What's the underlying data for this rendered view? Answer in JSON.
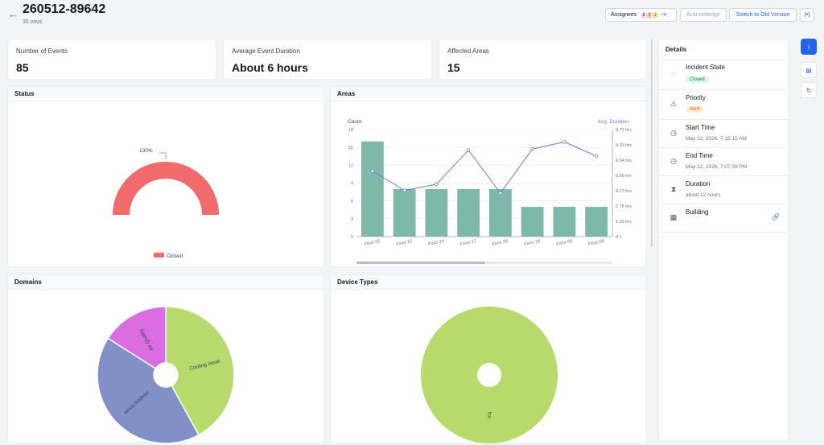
{
  "header": {
    "back_icon": "arrow-left-icon",
    "title": "260512-89642",
    "subtitle": "35 vavs",
    "assignees_label": "Assignees",
    "assignee_avatars": [
      "E",
      "C",
      "J"
    ],
    "assignee_more": "+4",
    "acknowledge_label": "Acknowledge",
    "switch_label": "Switch to Old Version",
    "radio_icon": "broadcast-icon"
  },
  "stats": [
    {
      "label": "Number of Events",
      "value": "85"
    },
    {
      "label": "Average Event Duration",
      "value": "About 6 hours"
    },
    {
      "label": "Affected Areas",
      "value": "15"
    }
  ],
  "panels": {
    "status": "Status",
    "areas": "Areas",
    "domains": "Domains",
    "device_types": "Device Types"
  },
  "status_chart": {
    "type": "pie",
    "slices": [
      {
        "label": "Closed",
        "value": 100,
        "color": "#f06b6b"
      }
    ],
    "percent_label": "100%",
    "legend": "Closed"
  },
  "chart_data": [
    {
      "type": "bar",
      "title": "Areas",
      "ylabel": "Count",
      "y2label": "Avg. Duration",
      "categories": [
        "Floor 02",
        "Floor 22",
        "Floor 24",
        "Floor 17",
        "Floor 05",
        "Floor 23",
        "Floor 09",
        "Floor 08"
      ],
      "series": [
        {
          "name": "Count",
          "values": [
            16,
            8,
            8,
            8,
            8,
            5,
            5,
            5
          ],
          "color": "#7fb8aa"
        },
        {
          "name": "Avg. Duration",
          "values": [
            5.95,
            4.2,
            4.75,
            7.85,
            3.95,
            7.95,
            8.6,
            7.3
          ],
          "color": "#6a7fd6"
        }
      ],
      "ylim": [
        0,
        18
      ],
      "yticks": [
        "0",
        "3",
        "6",
        "9",
        "12",
        "15",
        "18"
      ],
      "y2lim": [
        0,
        9.72
      ],
      "y2ticks": [
        "0 s",
        "1.39 hrs",
        "2.78 hrs",
        "4.17 hrs",
        "5.56 hrs",
        "6.94 hrs",
        "8.33 hrs",
        "9.72 hrs"
      ]
    },
    {
      "type": "pie",
      "title": "Domains",
      "slices": [
        {
          "label": "Cooling issue",
          "value": 42,
          "color": "#b8d96b"
        },
        {
          "label": "Heating issue",
          "value": 42,
          "color": "#8290c8"
        },
        {
          "label": "Air Quality",
          "value": 16,
          "color": "#da6ee0"
        }
      ]
    },
    {
      "type": "pie",
      "title": "Device Types",
      "slices": [
        {
          "label": "fcu",
          "value": 100,
          "color": "#b8d96b"
        }
      ]
    }
  ],
  "details": {
    "title": "Details",
    "rows": [
      {
        "icon": "circle-progress-icon",
        "label": "Incident State",
        "badge": "Closed"
      },
      {
        "icon": "warning-triangle-icon",
        "label": "Priority",
        "badge": "Alert"
      },
      {
        "icon": "clock-icon",
        "label": "Start Time",
        "value": "May 12, 2026, 7:15:15 AM"
      },
      {
        "icon": "clock-icon",
        "label": "End Time",
        "value": "May 12, 2026, 7:07:39 PM"
      },
      {
        "icon": "hourglass-icon",
        "label": "Duration",
        "value": "about 12 hours"
      },
      {
        "icon": "building-icon",
        "label": "Building",
        "link_icon": "link-icon"
      }
    ]
  },
  "side_buttons": [
    {
      "icon": "info-icon",
      "glyph": "i"
    },
    {
      "icon": "chat-icon",
      "glyph": "▤"
    },
    {
      "icon": "refresh-icon",
      "glyph": "↻"
    }
  ]
}
